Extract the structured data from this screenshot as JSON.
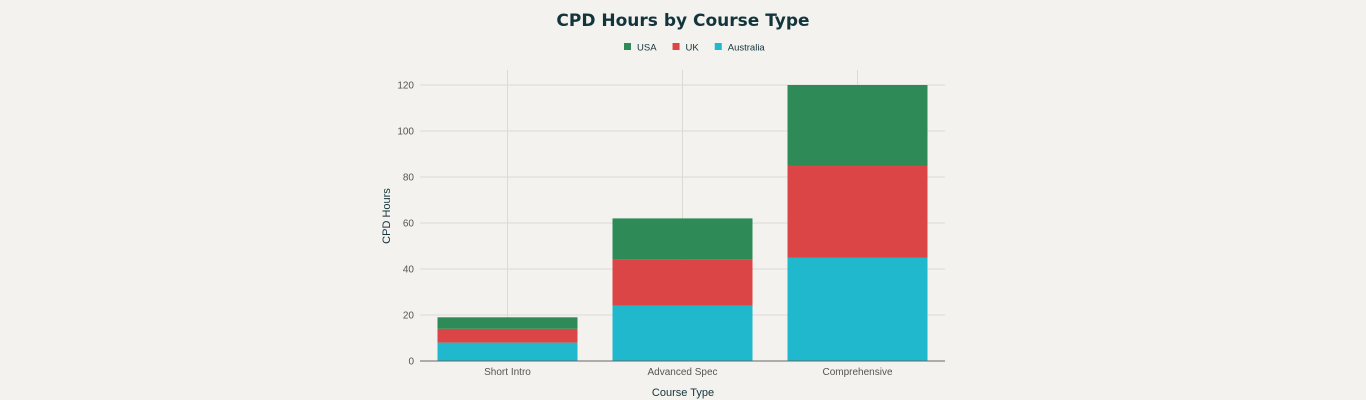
{
  "chart_data": {
    "type": "bar",
    "stacked": true,
    "title": "CPD Hours by Course Type",
    "xlabel": "Course Type",
    "ylabel": "CPD Hours",
    "categories": [
      "Short Intro",
      "Advanced Spec",
      "Comprehensive"
    ],
    "series": [
      {
        "name": "Australia",
        "values": [
          8,
          24,
          45
        ],
        "color": "#1fb8cd"
      },
      {
        "name": "UK",
        "values": [
          6,
          20,
          40
        ],
        "color": "#db4545"
      },
      {
        "name": "USA",
        "values": [
          5,
          18,
          35
        ],
        "color": "#2e8b57"
      }
    ],
    "legend_order": [
      "USA",
      "UK",
      "Australia"
    ],
    "legend_position": "top-center",
    "ylim": [
      0,
      126
    ],
    "yticks": [
      0,
      20,
      40,
      60,
      80,
      100,
      120
    ],
    "grid": true
  }
}
